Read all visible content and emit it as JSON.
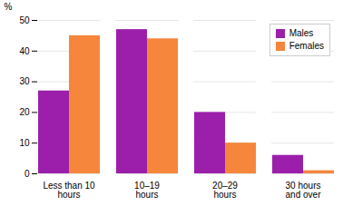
{
  "chart_data": {
    "type": "bar",
    "categories": [
      "Less than 10\nhours",
      "10–19\nhours",
      "20–29\nhours",
      "30 hours\nand over"
    ],
    "series": [
      {
        "name": "Males",
        "color": "#9B1FAA",
        "values": [
          27,
          47,
          20,
          6
        ]
      },
      {
        "name": "Females",
        "color": "#F5863C",
        "values": [
          45,
          44,
          10,
          1
        ]
      }
    ],
    "ylabel": "%",
    "ylim": [
      0,
      50
    ],
    "yticks": [
      0,
      10,
      20,
      30,
      40,
      50
    ],
    "grid": true,
    "legend": "upper right"
  }
}
